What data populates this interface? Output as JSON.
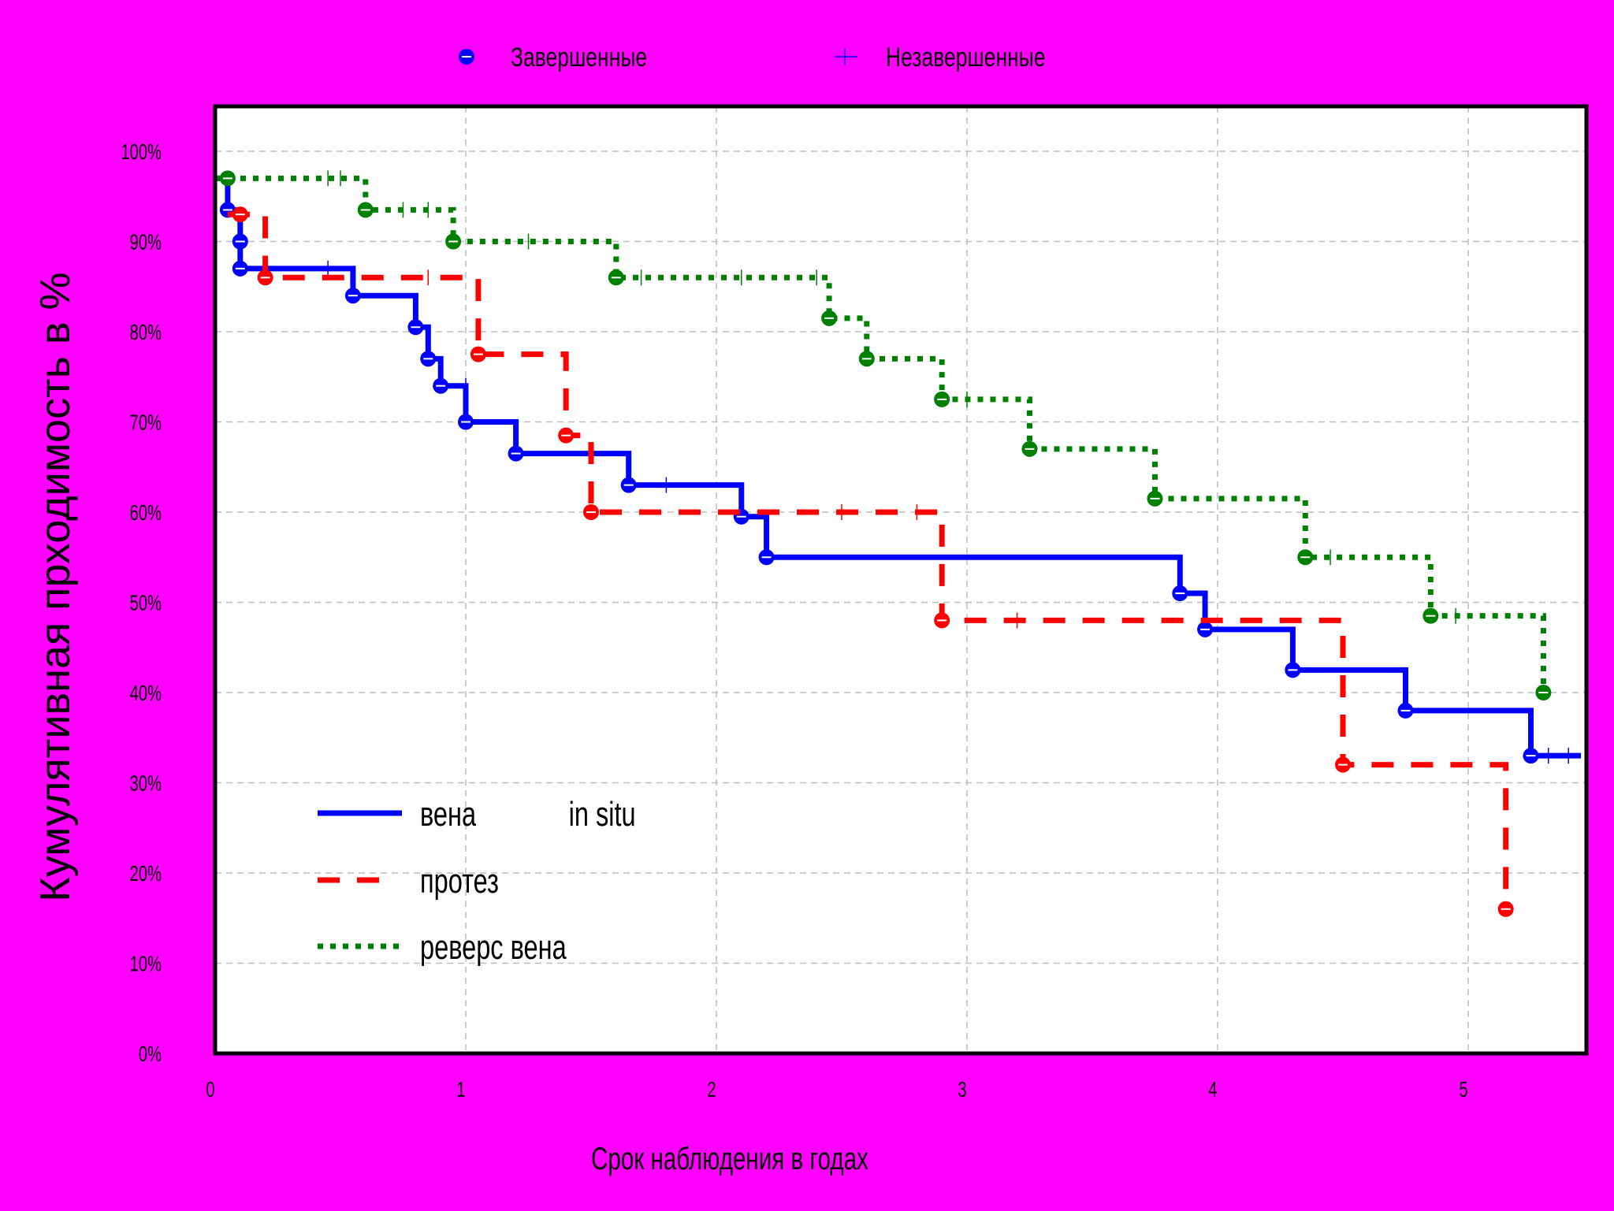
{
  "legend_top": {
    "completed_label": "Завершенные",
    "censored_label": "Незавершенные"
  },
  "chart_data": {
    "type": "line",
    "subtype": "kaplan-meier step",
    "ylabel": "Кумулятивная прходимость в %",
    "xlabel": "Срок наблюдения в годах",
    "x_ticks": [
      "0",
      "1",
      "2",
      "3",
      "4",
      "5"
    ],
    "y_ticks": [
      "0%",
      "10%",
      "20%",
      "30%",
      "40%",
      "50%",
      "60%",
      "70%",
      "80%",
      "90%",
      "100%"
    ],
    "xlim": [
      0,
      5.5
    ],
    "ylim": [
      0,
      100
    ],
    "grid": true,
    "series": [
      {
        "name": "вена             in situ",
        "color": "#0000ff",
        "style": "solid",
        "steps": [
          [
            0.0,
            97
          ],
          [
            0.05,
            93.5
          ],
          [
            0.1,
            90
          ],
          [
            0.1,
            87
          ],
          [
            0.55,
            84
          ],
          [
            0.8,
            80.5
          ],
          [
            0.85,
            77
          ],
          [
            0.9,
            74
          ],
          [
            1.0,
            70
          ],
          [
            1.2,
            66.5
          ],
          [
            1.65,
            63
          ],
          [
            2.1,
            59.5
          ],
          [
            2.2,
            55
          ],
          [
            3.85,
            51
          ],
          [
            3.95,
            47
          ],
          [
            4.3,
            42.5
          ],
          [
            4.75,
            38
          ],
          [
            5.25,
            33
          ],
          [
            5.45,
            33
          ]
        ],
        "events": [
          [
            0.05,
            93.5
          ],
          [
            0.1,
            90
          ],
          [
            0.1,
            87
          ],
          [
            0.55,
            84
          ],
          [
            0.8,
            80.5
          ],
          [
            0.85,
            77
          ],
          [
            0.9,
            74
          ],
          [
            1.0,
            70
          ],
          [
            1.2,
            66.5
          ],
          [
            1.65,
            63
          ],
          [
            2.1,
            59.5
          ],
          [
            2.2,
            55
          ],
          [
            3.85,
            51
          ],
          [
            3.95,
            47
          ],
          [
            4.3,
            42.5
          ],
          [
            4.75,
            38
          ],
          [
            5.25,
            33
          ]
        ],
        "censored": [
          [
            0.45,
            87
          ],
          [
            1.0,
            74
          ],
          [
            1.8,
            63
          ],
          [
            5.32,
            33
          ],
          [
            5.4,
            33
          ]
        ]
      },
      {
        "name": "протез",
        "color": "#ff0000",
        "style": "dashed",
        "steps": [
          [
            0.05,
            93
          ],
          [
            0.2,
            86
          ],
          [
            1.05,
            77.5
          ],
          [
            1.4,
            68.5
          ],
          [
            1.5,
            60
          ],
          [
            2.9,
            48
          ],
          [
            4.5,
            32
          ],
          [
            5.15,
            16
          ]
        ],
        "events": [
          [
            0.1,
            93
          ],
          [
            0.2,
            86
          ],
          [
            1.05,
            77.5
          ],
          [
            1.4,
            68.5
          ],
          [
            1.5,
            60
          ],
          [
            2.9,
            48
          ],
          [
            4.5,
            32
          ],
          [
            5.15,
            16
          ]
        ],
        "censored": [
          [
            0.85,
            86
          ],
          [
            2.5,
            60
          ],
          [
            2.8,
            60
          ],
          [
            3.2,
            48
          ]
        ]
      },
      {
        "name": "реверс вена",
        "color": "#008000",
        "style": "dotted",
        "steps": [
          [
            0.0,
            97
          ],
          [
            0.6,
            93.5
          ],
          [
            0.95,
            90
          ],
          [
            1.6,
            86
          ],
          [
            2.45,
            81.5
          ],
          [
            2.6,
            77
          ],
          [
            2.9,
            72.5
          ],
          [
            3.25,
            67
          ],
          [
            3.75,
            61.5
          ],
          [
            4.35,
            55
          ],
          [
            4.85,
            48.5
          ],
          [
            5.3,
            40
          ]
        ],
        "events": [
          [
            0.05,
            97
          ],
          [
            0.6,
            93.5
          ],
          [
            0.95,
            90
          ],
          [
            1.6,
            86
          ],
          [
            2.45,
            81.5
          ],
          [
            2.6,
            77
          ],
          [
            2.9,
            72.5
          ],
          [
            3.25,
            67
          ],
          [
            3.75,
            61.5
          ],
          [
            4.35,
            55
          ],
          [
            4.85,
            48.5
          ],
          [
            5.3,
            40
          ]
        ],
        "censored": [
          [
            0.45,
            97
          ],
          [
            0.5,
            97
          ],
          [
            0.75,
            93.5
          ],
          [
            0.85,
            93.5
          ],
          [
            1.25,
            90
          ],
          [
            1.7,
            86
          ],
          [
            2.1,
            86
          ],
          [
            2.4,
            86
          ],
          [
            3.0,
            72.5
          ],
          [
            4.45,
            55
          ],
          [
            4.95,
            48.5
          ]
        ]
      }
    ]
  }
}
